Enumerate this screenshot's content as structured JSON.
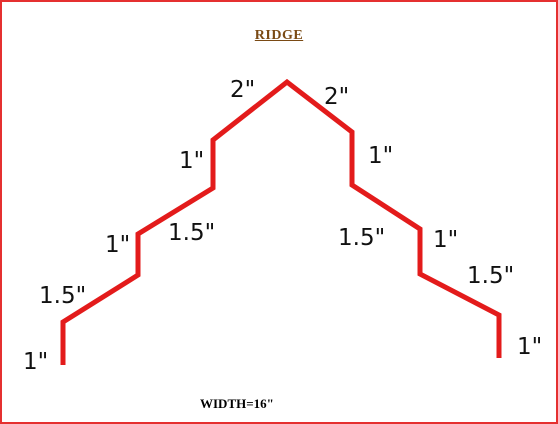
{
  "title": "RIDGE",
  "footer": "WIDTH=16\"",
  "stroke_color": "#e31b1b",
  "labels": {
    "left_top": "2\"",
    "right_top": "2\"",
    "left_riser_1": "1\"",
    "right_riser_1": "1\"",
    "left_slope_1": "1.5\"",
    "right_slope_1": "1.5\"",
    "left_riser_2": "1\"",
    "right_riser_2": "1\"",
    "left_slope_2": "1.5\"",
    "right_slope_2": "1.5\"",
    "left_end": "1\"",
    "right_end": "1\""
  }
}
